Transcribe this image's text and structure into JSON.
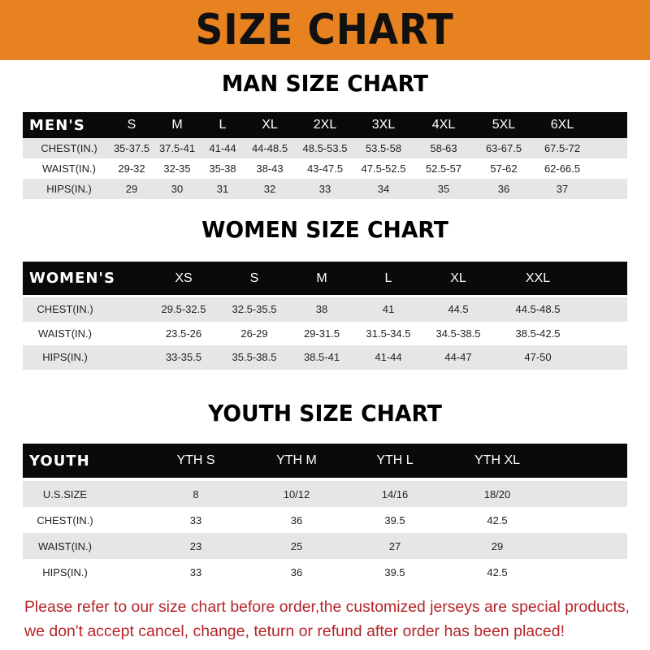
{
  "banner": {
    "title": "SIZE CHART",
    "color": "#e8811f"
  },
  "men": {
    "title": "MAN SIZE CHART",
    "header": [
      "MEN'S",
      "S",
      "M",
      "L",
      "XL",
      "2XL",
      "3XL",
      "4XL",
      "5XL",
      "6XL"
    ],
    "rows": [
      [
        "CHEST(IN.)",
        "35-37.5",
        "37.5-41",
        "41-44",
        "44-48.5",
        "48.5-53.5",
        "53.5-58",
        "58-63",
        "63-67.5",
        "67.5-72"
      ],
      [
        "WAIST(IN.)",
        "29-32",
        "32-35",
        "35-38",
        "38-43",
        "43-47.5",
        "47.5-52.5",
        "52.5-57",
        "57-62",
        "62-66.5"
      ],
      [
        "HIPS(IN.)",
        "29",
        "30",
        "31",
        "32",
        "33",
        "34",
        "35",
        "36",
        "37"
      ]
    ]
  },
  "women": {
    "title": "WOMEN SIZE CHART",
    "header": [
      "WOMEN'S",
      "XS",
      "S",
      "M",
      "L",
      "XL",
      "XXL"
    ],
    "rows": [
      [
        "CHEST(IN.)",
        "29.5-32.5",
        "32.5-35.5",
        "38",
        "41",
        "44.5",
        "44.5-48.5"
      ],
      [
        "WAIST(IN.)",
        "23.5-26",
        "26-29",
        "29-31.5",
        "31.5-34.5",
        "34.5-38.5",
        "38.5-42.5"
      ],
      [
        "HIPS(IN.)",
        "33-35.5",
        "35.5-38.5",
        "38.5-41",
        "41-44",
        "44-47",
        "47-50"
      ]
    ]
  },
  "youth": {
    "title": "YOUTH SIZE CHART",
    "header": [
      "YOUTH",
      "YTH S",
      "YTH M",
      "YTH L",
      "YTH XL"
    ],
    "rows": [
      [
        "U.S.SIZE",
        "8",
        "10/12",
        "14/16",
        "18/20"
      ],
      [
        "CHEST(IN.)",
        "33",
        "36",
        "39.5",
        "42.5"
      ],
      [
        "WAIST(IN.)",
        "23",
        "25",
        "27",
        "29"
      ],
      [
        "HIPS(IN.)",
        "33",
        "36",
        "39.5",
        "42.5"
      ]
    ]
  },
  "note": {
    "line1": "Please refer to our size chart before order,the customized jerseys are special products,",
    "line2": "we don't accept cancel, change, teturn or refund after order has been placed!",
    "color": "#b5252a"
  }
}
